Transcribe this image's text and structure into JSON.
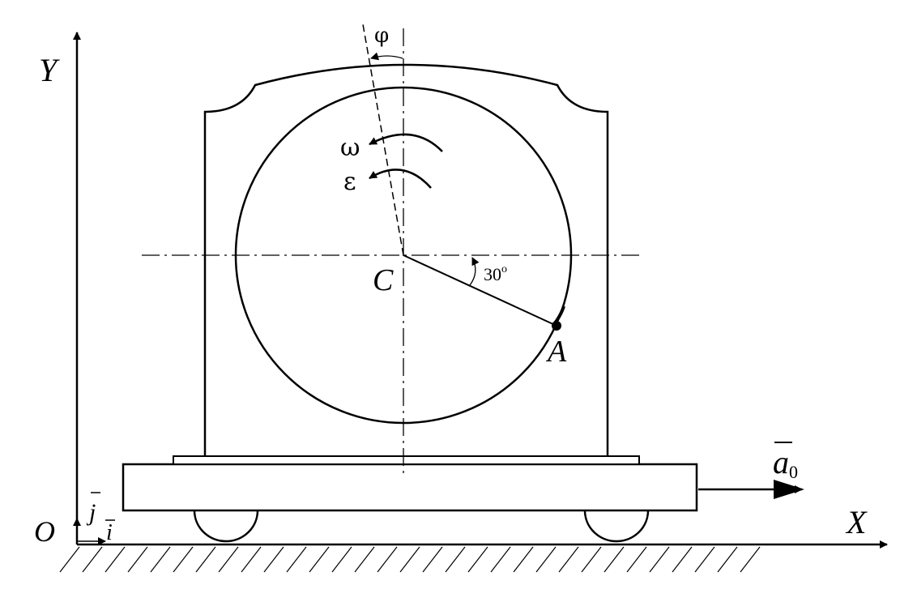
{
  "labels": {
    "axis_y": "Y",
    "axis_x": "X",
    "origin": "O",
    "unit_j": "j",
    "unit_i": "i",
    "center": "C",
    "point": "A",
    "angle_value": "30",
    "angle_degree": "o",
    "phi": "φ",
    "omega": "ω",
    "epsilon": "ε",
    "accel": "a",
    "accel_sub": "0"
  },
  "colors": {
    "stroke": "#000000",
    "background": "#ffffff"
  }
}
